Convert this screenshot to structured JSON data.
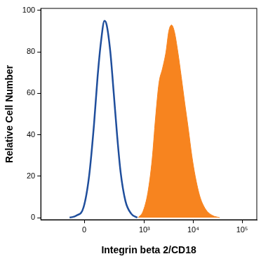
{
  "chart_data": {
    "type": "line",
    "x_label": "Integrin beta 2/CD18",
    "y_label": "Relative Cell Number",
    "log": "x",
    "grid": false,
    "xlim": [
      -450,
      200000
    ],
    "xticks": [
      0,
      {
        "value": 1000,
        "label": "10³"
      },
      {
        "value": 10000,
        "label": "10⁴"
      },
      {
        "value": 100000,
        "label": "10⁵"
      }
    ],
    "ylim": [
      -1,
      101
    ],
    "yticks": [
      0,
      20,
      40,
      60,
      80,
      100
    ],
    "series": [
      {
        "type": "line",
        "color": "#1f4e9c",
        "x": [
          -88,
          -44,
          -4,
          27,
          56,
          79,
          103,
          130,
          149,
          184,
          222,
          264,
          316,
          402,
          527,
          714
        ],
        "values": [
          0,
          1,
          5,
          20,
          45,
          68,
          85,
          95,
          93,
          80,
          60,
          40,
          22,
          8,
          2,
          0
        ]
      },
      {
        "type": "area",
        "color": "#f7841f",
        "x": [
          739,
          934,
          1175,
          1440,
          1690,
          1990,
          2350,
          2770,
          3160,
          3600,
          4100,
          4850,
          5700,
          6740,
          7930,
          9360,
          11000,
          13800,
          18000,
          25000,
          34800
        ],
        "values": [
          0,
          3,
          12,
          28,
          48,
          65,
          72,
          80,
          90,
          93,
          90,
          80,
          68,
          55,
          43,
          30,
          20,
          10,
          4,
          1,
          0
        ]
      }
    ]
  }
}
